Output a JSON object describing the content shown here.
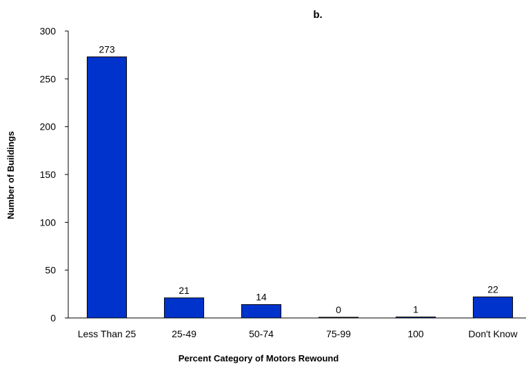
{
  "chart_data": {
    "type": "bar",
    "title": "b.",
    "xlabel": "Percent Category of Motors Rewound",
    "ylabel": "Number of Buildings",
    "categories": [
      "Less Than 25",
      "25-49",
      "50-74",
      "75-99",
      "100",
      "Don't Know"
    ],
    "values": [
      273,
      21,
      14,
      0,
      1,
      22
    ],
    "data_labels": [
      "273",
      "21",
      "14",
      "0",
      "1",
      "22"
    ],
    "ylim": [
      0,
      300
    ],
    "yticks": [
      0,
      50,
      100,
      150,
      200,
      250,
      300
    ],
    "ytick_labels": [
      "0",
      "50",
      "100",
      "150",
      "200",
      "250",
      "300"
    ],
    "grid": false,
    "legend": "none",
    "bar_color": "#0033cc",
    "bar_outline": "#000000"
  }
}
